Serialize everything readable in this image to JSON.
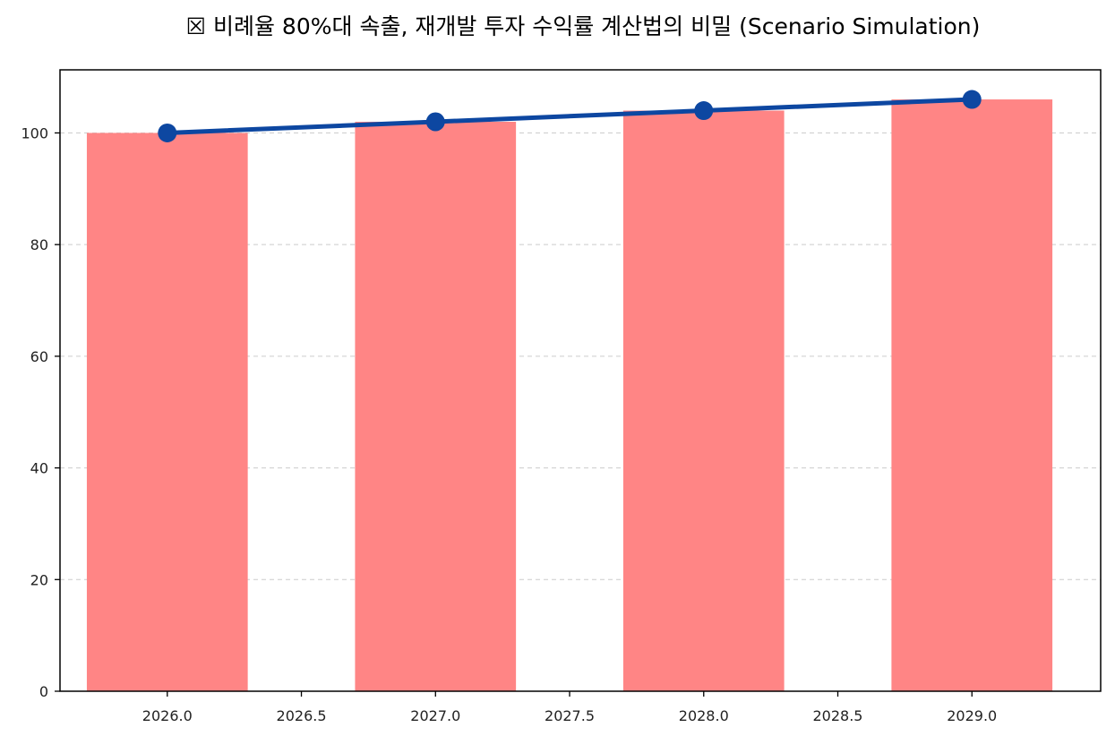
{
  "chart_data": {
    "type": "bar",
    "title": "☒ 비례율 80%대 속출, 재개발 투자 수익률 계산법의 비밀 (Scenario Simulation)",
    "xlabel": "",
    "ylabel": "",
    "x": [
      2026,
      2027,
      2028,
      2029
    ],
    "bar_width": 0.6,
    "series": [
      {
        "kind": "bar",
        "values": [
          100,
          102,
          104,
          106
        ],
        "color": "#ff8585"
      },
      {
        "kind": "line",
        "values": [
          100,
          102,
          104,
          106
        ],
        "color": "#0d47a1",
        "marker": "circle"
      }
    ],
    "xlim": [
      2025.6,
      2029.48
    ],
    "ylim": [
      0,
      111.3
    ],
    "xticks": [
      2026.0,
      2026.5,
      2027.0,
      2027.5,
      2028.0,
      2028.5,
      2029.0
    ],
    "xtick_labels": [
      "2026.0",
      "2026.5",
      "2027.0",
      "2027.5",
      "2028.0",
      "2028.5",
      "2029.0"
    ],
    "yticks": [
      0,
      20,
      40,
      60,
      80,
      100
    ],
    "ytick_labels": [
      "0",
      "20",
      "40",
      "60",
      "80",
      "100"
    ],
    "grid": "y-dashed",
    "legend": "none"
  }
}
